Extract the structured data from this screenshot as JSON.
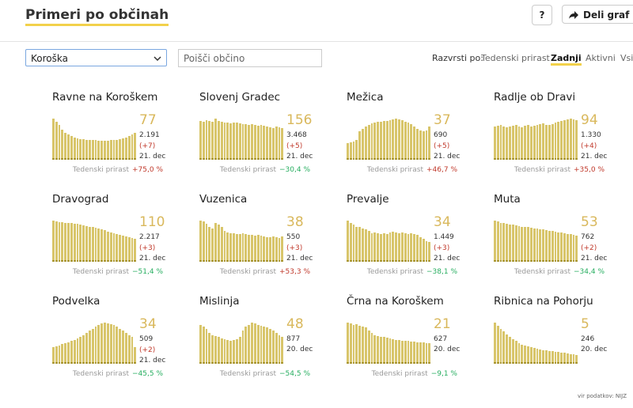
{
  "header": {
    "title": "Primeri po občinah",
    "help_button": "?",
    "share_button": "Deli graf na"
  },
  "controls": {
    "region_select": "Koroška",
    "search_placeholder": "Poišči občino",
    "sort_label": "Razvrsti po:",
    "sort_options": [
      "Tedenski prirast",
      "Zadnji",
      "Aktivni",
      "Vsi"
    ],
    "sort_selected": "Zadnji"
  },
  "municipalities": [
    {
      "name": "Ravne na Koroškem",
      "active": "77",
      "total": "2.191",
      "change": "(+7)",
      "date": "21. dec",
      "growth_label": "Tedenski prirast",
      "growth": "+75,0 %",
      "bars": [
        95,
        88,
        80,
        70,
        62,
        58,
        55,
        52,
        50,
        48,
        47,
        46,
        46,
        45,
        45,
        44,
        44,
        44,
        44,
        45,
        45,
        46,
        48,
        50,
        52,
        55,
        58,
        62
      ]
    },
    {
      "name": "Slovenj Gradec",
      "active": "156",
      "total": "3.468",
      "change": "(+5)",
      "date": "21. dec",
      "growth_label": "Tedenski prirast",
      "growth": "−30,4 %",
      "bars": [
        90,
        88,
        92,
        90,
        88,
        95,
        90,
        88,
        86,
        85,
        84,
        86,
        85,
        84,
        83,
        82,
        80,
        82,
        80,
        78,
        80,
        78,
        76,
        75,
        74,
        76,
        75,
        74
      ]
    },
    {
      "name": "Mežica",
      "active": "37",
      "total": "690",
      "change": "(+5)",
      "date": "21. dec",
      "growth_label": "Tedenski prirast",
      "growth": "+46,7 %",
      "bars": [
        40,
        42,
        45,
        48,
        70,
        75,
        80,
        85,
        88,
        90,
        92,
        92,
        94,
        95,
        96,
        98,
        100,
        98,
        96,
        92,
        90,
        86,
        80,
        75,
        72,
        70,
        72,
        80
      ]
    },
    {
      "name": "Radlje ob Dravi",
      "active": "94",
      "total": "1.330",
      "change": "(+4)",
      "date": "21. dec",
      "growth_label": "Tedenski prirast",
      "growth": "+35,0 %",
      "bars": [
        80,
        82,
        85,
        80,
        78,
        80,
        82,
        84,
        80,
        78,
        82,
        84,
        80,
        82,
        84,
        86,
        88,
        85,
        84,
        86,
        90,
        92,
        94,
        96,
        98,
        100,
        98,
        96
      ]
    },
    {
      "name": "Dravograd",
      "active": "110",
      "total": "2.217",
      "change": "(+3)",
      "date": "21. dec",
      "growth_label": "Tedenski prirast",
      "growth": "−51,4 %",
      "bars": [
        100,
        98,
        96,
        97,
        95,
        94,
        95,
        93,
        92,
        90,
        88,
        86,
        85,
        84,
        82,
        80,
        78,
        76,
        74,
        72,
        70,
        68,
        66,
        64,
        62,
        60,
        58,
        56
      ]
    },
    {
      "name": "Vuzenica",
      "active": "38",
      "total": "550",
      "change": "(+3)",
      "date": "21. dec",
      "growth_label": "Tedenski prirast",
      "growth": "+53,3 %",
      "bars": [
        100,
        98,
        92,
        85,
        80,
        95,
        90,
        85,
        75,
        72,
        70,
        70,
        68,
        68,
        70,
        68,
        66,
        65,
        64,
        66,
        64,
        62,
        60,
        60,
        62,
        60,
        58,
        62
      ]
    },
    {
      "name": "Prevalje",
      "active": "34",
      "total": "1.449",
      "change": "(+3)",
      "date": "21. dec",
      "growth_label": "Tedenski prirast",
      "growth": "−38,1 %",
      "bars": [
        100,
        95,
        90,
        85,
        85,
        80,
        78,
        75,
        70,
        72,
        70,
        68,
        70,
        68,
        72,
        74,
        72,
        70,
        72,
        70,
        68,
        70,
        68,
        65,
        60,
        55,
        50,
        48
      ]
    },
    {
      "name": "Muta",
      "active": "53",
      "total": "762",
      "change": "(+2)",
      "date": "21. dec",
      "growth_label": "Tedenski prirast",
      "growth": "−34,4 %",
      "bars": [
        100,
        98,
        95,
        95,
        92,
        90,
        90,
        88,
        86,
        85,
        84,
        84,
        82,
        80,
        80,
        78,
        78,
        76,
        75,
        75,
        74,
        72,
        72,
        70,
        68,
        68,
        66,
        64
      ]
    },
    {
      "name": "Podvelka",
      "active": "34",
      "total": "509",
      "change": "(+2)",
      "date": "21. dec",
      "growth_label": "Tedenski prirast",
      "growth": "−45,5 %",
      "bars": [
        40,
        42,
        45,
        48,
        50,
        52,
        55,
        58,
        62,
        66,
        70,
        75,
        80,
        85,
        90,
        95,
        98,
        100,
        98,
        96,
        94,
        90,
        85,
        80,
        75,
        70,
        65,
        40
      ]
    },
    {
      "name": "Mislinja",
      "active": "48",
      "total": "877",
      "date": "20. dec",
      "growth_label": "Tedenski prirast",
      "growth": "−54,5 %",
      "bars": [
        95,
        90,
        85,
        75,
        70,
        68,
        65,
        62,
        60,
        58,
        56,
        58,
        60,
        65,
        80,
        90,
        95,
        100,
        98,
        95,
        92,
        90,
        88,
        85,
        80,
        75,
        70,
        65
      ]
    },
    {
      "name": "Črna na Koroškem",
      "active": "21",
      "total": "627",
      "date": "20. dec",
      "growth_label": "Tedenski prirast",
      "growth": "−9,1 %",
      "bars": [
        100,
        98,
        95,
        96,
        92,
        90,
        88,
        80,
        75,
        70,
        68,
        66,
        65,
        64,
        62,
        60,
        58,
        57,
        56,
        55,
        55,
        54,
        53,
        52,
        52,
        51,
        50,
        50
      ]
    },
    {
      "name": "Ribnica na Pohorju",
      "active": "5",
      "total": "246",
      "date": "20. dec",
      "bars": [
        100,
        92,
        85,
        78,
        72,
        66,
        60,
        55,
        50,
        47,
        44,
        42,
        40,
        38,
        36,
        34,
        33,
        32,
        31,
        30,
        29,
        28,
        27,
        26,
        25,
        24,
        23,
        22
      ]
    }
  ],
  "footer": "vir podatkov: NIJZ"
}
